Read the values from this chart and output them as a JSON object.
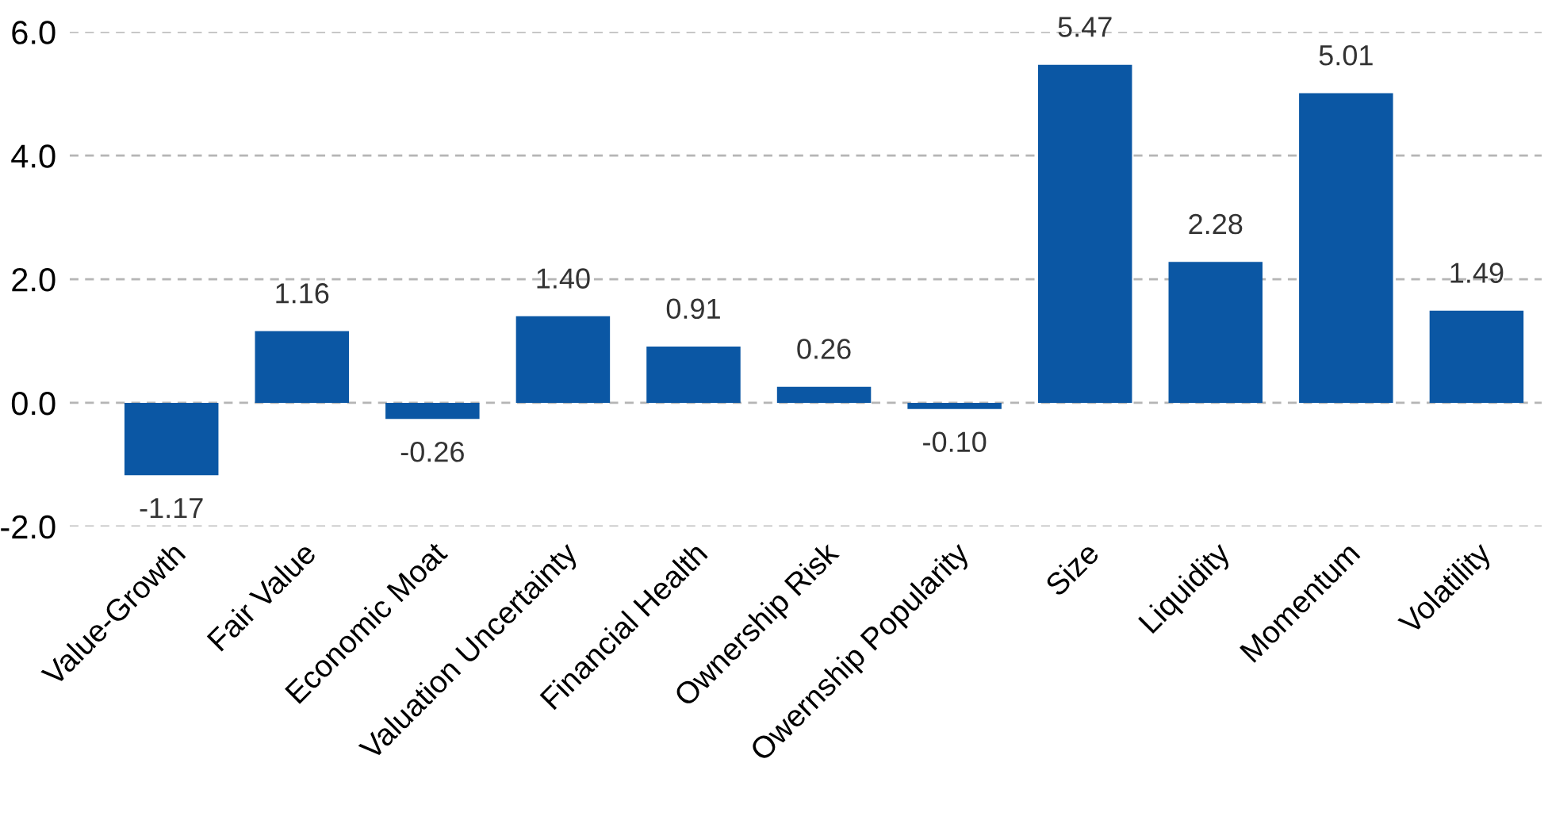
{
  "chart_data": {
    "type": "bar",
    "categories": [
      "Value-Growth",
      "Fair Value",
      "Economic Moat",
      "Valuation Uncertainty",
      "Financial Health",
      "Ownership Risk",
      "Owernship Popularity",
      "Size",
      "Liquidity",
      "Momentum",
      "Volatility"
    ],
    "values": [
      -1.17,
      1.16,
      -0.26,
      1.4,
      0.91,
      0.26,
      -0.1,
      5.47,
      2.28,
      5.01,
      1.49
    ],
    "value_labels": [
      "-1.17",
      "1.16",
      "-0.26",
      "1.40",
      "0.91",
      "0.26",
      "-0.10",
      "5.47",
      "2.28",
      "5.01",
      "1.49"
    ],
    "color": "#0b57a4",
    "ylim": [
      -2.0,
      6.0
    ],
    "yticks": [
      {
        "value": -2.0,
        "label": "-2.0"
      },
      {
        "value": 0.0,
        "label": "0.0"
      },
      {
        "value": 2.0,
        "label": "2.0"
      },
      {
        "value": 4.0,
        "label": "4.0"
      },
      {
        "value": 6.0,
        "label": "6.0"
      }
    ],
    "grid": "y"
  }
}
